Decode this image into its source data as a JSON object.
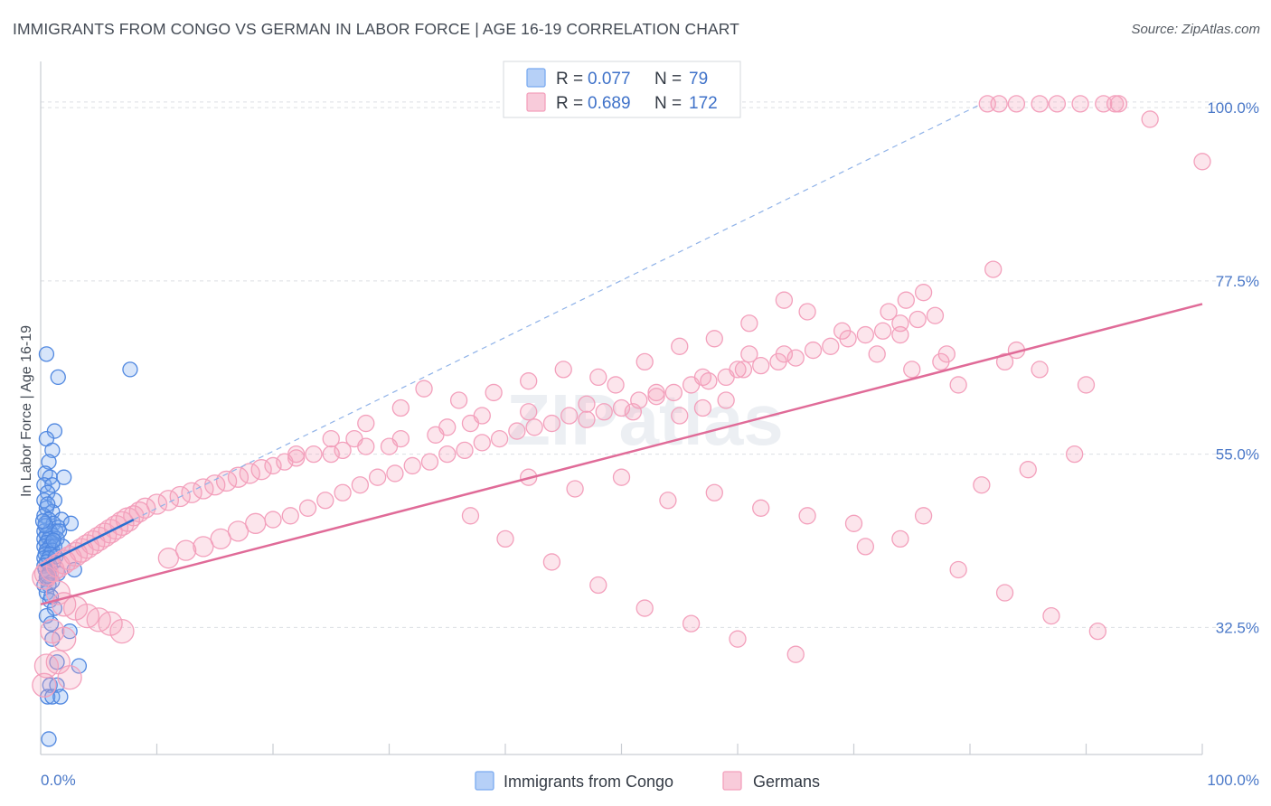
{
  "chart_data": {
    "type": "scatter",
    "title": "IMMIGRANTS FROM CONGO VS GERMAN IN LABOR FORCE | AGE 16-19 CORRELATION CHART",
    "source": "Source: ZipAtlas.com",
    "xlabel": "",
    "ylabel": "In Labor Force | Age 16-19",
    "xlim": [
      0,
      100
    ],
    "ylim": [
      16,
      106
    ],
    "x_tick_labels": [
      "0.0%",
      "100.0%"
    ],
    "y_ticks": [
      32.5,
      55.0,
      77.5,
      100.0
    ],
    "y_tick_labels": [
      "32.5%",
      "55.0%",
      "77.5%",
      "100.0%"
    ],
    "grid": true,
    "legend_position": "top-center",
    "watermark": "ZIPatlas",
    "series": [
      {
        "name": "Immigrants from Congo",
        "color": "#7aaaf0",
        "line_color": "#2a6fd0",
        "stats": {
          "r_label": "R =",
          "r": "0.077",
          "n_label": "N =",
          "n": "79"
        },
        "trend": {
          "x0": 0,
          "y0": 40.5,
          "x1": 8,
          "y1": 46.5,
          "dashed_to": {
            "x": 81,
            "y": 100.5
          }
        },
        "points": [
          [
            0.5,
            68
          ],
          [
            1.5,
            65
          ],
          [
            1.2,
            58
          ],
          [
            0.5,
            57
          ],
          [
            1.0,
            55.5
          ],
          [
            0.7,
            54
          ],
          [
            0.4,
            52.5
          ],
          [
            0.8,
            52
          ],
          [
            2,
            52
          ],
          [
            0.3,
            51
          ],
          [
            1.0,
            51
          ],
          [
            0.6,
            50
          ],
          [
            0.3,
            49
          ],
          [
            1.2,
            49
          ],
          [
            0.5,
            48
          ],
          [
            1.0,
            47.5
          ],
          [
            0.3,
            47
          ],
          [
            0.7,
            46.5
          ],
          [
            1.8,
            46.5
          ],
          [
            0.4,
            46
          ],
          [
            1.1,
            46
          ],
          [
            1.5,
            45.5
          ],
          [
            0.3,
            45
          ],
          [
            0.8,
            45
          ],
          [
            1.3,
            45
          ],
          [
            0.5,
            44.5
          ],
          [
            1.0,
            44.5
          ],
          [
            0.3,
            44
          ],
          [
            0.7,
            44
          ],
          [
            1.4,
            44
          ],
          [
            0.5,
            43.5
          ],
          [
            1.0,
            43.5
          ],
          [
            0.3,
            43
          ],
          [
            0.8,
            43
          ],
          [
            1.2,
            43
          ],
          [
            0.5,
            42.5
          ],
          [
            1.0,
            42.5
          ],
          [
            0.4,
            42
          ],
          [
            0.8,
            42
          ],
          [
            0.3,
            41.5
          ],
          [
            0.7,
            41.5
          ],
          [
            0.5,
            41
          ],
          [
            1.1,
            41
          ],
          [
            0.3,
            40.5
          ],
          [
            0.8,
            40.5
          ],
          [
            2.9,
            40
          ],
          [
            0.4,
            40
          ],
          [
            0.7,
            39.5
          ],
          [
            1.5,
            39.5
          ],
          [
            0.5,
            39
          ],
          [
            1.0,
            38.5
          ],
          [
            0.3,
            38
          ],
          [
            0.7,
            38
          ],
          [
            0.5,
            37
          ],
          [
            0.8,
            36
          ],
          [
            1.2,
            35
          ],
          [
            0.5,
            34
          ],
          [
            0.9,
            33
          ],
          [
            2.5,
            32
          ],
          [
            1.0,
            31
          ],
          [
            1.4,
            28
          ],
          [
            3.3,
            27.5
          ],
          [
            0.8,
            25
          ],
          [
            1.4,
            25
          ],
          [
            0.6,
            23.5
          ],
          [
            1.0,
            23.5
          ],
          [
            1.7,
            23.5
          ],
          [
            0.7,
            18
          ],
          [
            7.7,
            66
          ],
          [
            2.6,
            46
          ],
          [
            1.6,
            45
          ],
          [
            1.9,
            43
          ],
          [
            0.9,
            36.5
          ],
          [
            0.6,
            48.5
          ],
          [
            0.4,
            45.7
          ],
          [
            1.3,
            41.7
          ],
          [
            0.6,
            39.2
          ],
          [
            1.1,
            43.8
          ],
          [
            0.2,
            46.3
          ]
        ]
      },
      {
        "name": "Germans",
        "color": "#f3a0bc",
        "line_color": "#e06b98",
        "stats": {
          "r_label": "R =",
          "r": "0.689",
          "n_label": "N =",
          "n": "172"
        },
        "trend": {
          "x0": 0,
          "y0": 35.5,
          "x1": 100,
          "y1": 74.5
        },
        "points": [
          [
            81.5,
            100.5
          ],
          [
            82.5,
            100.5
          ],
          [
            84,
            100.5
          ],
          [
            86,
            100.5
          ],
          [
            87.5,
            100.5
          ],
          [
            89.5,
            100.5
          ],
          [
            91.5,
            100.5
          ],
          [
            92.5,
            100.5
          ],
          [
            92.8,
            100.5
          ],
          [
            95.5,
            98.5
          ],
          [
            100,
            93
          ],
          [
            82,
            79
          ],
          [
            76,
            76
          ],
          [
            74.5,
            75
          ],
          [
            73,
            73.5
          ],
          [
            74,
            70.5
          ],
          [
            78,
            68
          ],
          [
            84,
            68.5
          ],
          [
            77.5,
            67
          ],
          [
            61,
            68
          ],
          [
            64,
            68
          ],
          [
            60,
            66
          ],
          [
            57,
            65
          ],
          [
            49.5,
            64
          ],
          [
            53,
            63
          ],
          [
            59,
            62
          ],
          [
            57,
            61
          ],
          [
            55,
            60
          ],
          [
            51,
            60.5
          ],
          [
            47,
            61.5
          ],
          [
            42,
            60.5
          ],
          [
            38,
            60
          ],
          [
            37,
            59
          ],
          [
            35,
            58.5
          ],
          [
            34,
            57.5
          ],
          [
            31,
            57
          ],
          [
            30,
            56
          ],
          [
            28,
            56
          ],
          [
            27,
            57
          ],
          [
            26,
            55.5
          ],
          [
            25,
            55
          ],
          [
            23.5,
            55
          ],
          [
            22,
            54.5
          ],
          [
            21,
            54
          ],
          [
            20,
            53.5
          ],
          [
            19,
            53
          ],
          [
            18,
            52.5
          ],
          [
            17,
            52
          ],
          [
            16,
            51.5
          ],
          [
            15,
            51
          ],
          [
            14,
            50.5
          ],
          [
            13,
            50
          ],
          [
            12,
            49.5
          ],
          [
            11,
            49
          ],
          [
            10,
            48.5
          ],
          [
            9,
            48
          ],
          [
            8.5,
            47.5
          ],
          [
            8,
            47
          ],
          [
            7.5,
            46.5
          ],
          [
            7,
            46
          ],
          [
            6.5,
            45.5
          ],
          [
            6,
            45
          ],
          [
            5.5,
            44.5
          ],
          [
            5,
            44
          ],
          [
            4.5,
            43.5
          ],
          [
            4,
            43
          ],
          [
            3.5,
            42.5
          ],
          [
            3,
            42
          ],
          [
            2.5,
            41.5
          ],
          [
            2,
            41
          ],
          [
            1.5,
            40.5
          ],
          [
            1,
            40
          ],
          [
            0.5,
            39.5
          ],
          [
            0.3,
            39
          ],
          [
            1.5,
            37
          ],
          [
            2,
            35.5
          ],
          [
            3,
            35
          ],
          [
            4,
            34
          ],
          [
            5,
            33.5
          ],
          [
            6,
            33
          ],
          [
            7,
            32
          ],
          [
            1,
            32
          ],
          [
            2,
            31
          ],
          [
            1.5,
            28
          ],
          [
            0.5,
            27.5
          ],
          [
            2.5,
            26
          ],
          [
            0.3,
            25
          ],
          [
            11,
            41.5
          ],
          [
            12.5,
            42.5
          ],
          [
            14,
            43
          ],
          [
            15.5,
            44
          ],
          [
            17,
            45
          ],
          [
            18.5,
            46
          ],
          [
            20,
            46.5
          ],
          [
            21.5,
            47
          ],
          [
            23,
            48
          ],
          [
            24.5,
            49
          ],
          [
            26,
            50
          ],
          [
            27.5,
            51
          ],
          [
            29,
            52
          ],
          [
            30.5,
            52.5
          ],
          [
            32,
            53.5
          ],
          [
            33.5,
            54
          ],
          [
            35,
            55
          ],
          [
            36.5,
            55.5
          ],
          [
            38,
            56.5
          ],
          [
            39.5,
            57
          ],
          [
            41,
            58
          ],
          [
            42.5,
            58.5
          ],
          [
            44,
            59
          ],
          [
            45.5,
            60
          ],
          [
            47,
            59.5
          ],
          [
            48.5,
            60.5
          ],
          [
            50,
            61
          ],
          [
            51.5,
            62
          ],
          [
            53,
            62.5
          ],
          [
            54.5,
            63
          ],
          [
            56,
            64
          ],
          [
            57.5,
            64.5
          ],
          [
            59,
            65
          ],
          [
            60.5,
            66
          ],
          [
            62,
            66.5
          ],
          [
            63.5,
            67
          ],
          [
            65,
            67.5
          ],
          [
            66.5,
            68.5
          ],
          [
            68,
            69
          ],
          [
            69.5,
            70
          ],
          [
            71,
            70.5
          ],
          [
            72.5,
            71
          ],
          [
            74,
            72
          ],
          [
            75.5,
            72.5
          ],
          [
            77,
            73
          ],
          [
            22,
            55
          ],
          [
            25,
            57
          ],
          [
            28,
            59
          ],
          [
            31,
            61
          ],
          [
            33,
            63.5
          ],
          [
            36,
            62
          ],
          [
            39,
            63
          ],
          [
            42,
            64.5
          ],
          [
            45,
            66
          ],
          [
            48,
            65
          ],
          [
            52,
            67
          ],
          [
            55,
            69
          ],
          [
            58,
            70
          ],
          [
            61,
            72
          ],
          [
            64,
            75
          ],
          [
            66,
            73.5
          ],
          [
            69,
            71
          ],
          [
            72,
            68
          ],
          [
            75,
            66
          ],
          [
            79,
            64
          ],
          [
            83,
            67
          ],
          [
            86,
            66
          ],
          [
            90,
            64
          ],
          [
            42,
            52
          ],
          [
            46,
            50.5
          ],
          [
            50,
            52
          ],
          [
            54,
            49
          ],
          [
            58,
            50
          ],
          [
            62,
            48
          ],
          [
            66,
            47
          ],
          [
            70,
            46
          ],
          [
            74,
            44
          ],
          [
            79,
            40
          ],
          [
            83,
            37
          ],
          [
            87,
            34
          ],
          [
            91,
            32
          ],
          [
            37,
            47
          ],
          [
            40,
            44
          ],
          [
            44,
            41
          ],
          [
            48,
            38
          ],
          [
            52,
            35
          ],
          [
            56,
            33
          ],
          [
            60,
            31
          ],
          [
            65,
            29
          ],
          [
            71,
            43
          ],
          [
            76,
            47
          ],
          [
            81,
            51
          ],
          [
            85,
            53
          ],
          [
            89,
            55
          ]
        ]
      }
    ]
  }
}
